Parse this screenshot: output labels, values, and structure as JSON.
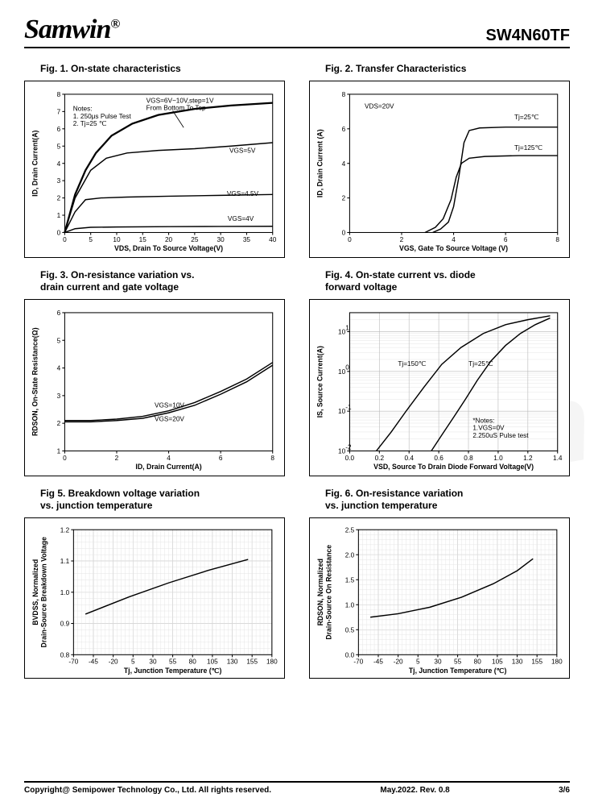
{
  "header": {
    "brand": "Samwin",
    "reg": "®",
    "partno": "SW4N60TF"
  },
  "footer": {
    "copyright": "Copyright@ Semipower Technology Co., Ltd. All rights reserved.",
    "rev": "May.2022. Rev. 0.8",
    "page": "3/6"
  },
  "charts": {
    "fig1": {
      "title": "Fig. 1. On-state characteristics",
      "xlabel": "VDS, Drain To Source Voltage(V)",
      "ylabel": "ID, Drain Current(A)",
      "xlim": [
        0,
        40
      ],
      "xtick_step": 5,
      "ylim": [
        0,
        8
      ],
      "ytick_step": 1,
      "notes": "Notes:\n 1. 250μs Pulse Test\n 2. Tj=25 ℃",
      "top_note": "VGS=6V~10V,step=1V\nFrom Bottom To Top",
      "series": [
        {
          "label": "VGS=4V",
          "pts": [
            [
              0,
              0
            ],
            [
              2,
              0.22
            ],
            [
              5,
              0.3
            ],
            [
              10,
              0.32
            ],
            [
              20,
              0.34
            ],
            [
              30,
              0.35
            ],
            [
              40,
              0.36
            ]
          ]
        },
        {
          "label": "VGS=4.5V",
          "pts": [
            [
              0,
              0
            ],
            [
              2,
              1.2
            ],
            [
              4,
              1.9
            ],
            [
              7,
              2.0
            ],
            [
              12,
              2.05
            ],
            [
              20,
              2.1
            ],
            [
              30,
              2.15
            ],
            [
              40,
              2.2
            ]
          ]
        },
        {
          "label": "VGS=5V",
          "pts": [
            [
              0,
              0
            ],
            [
              2,
              2.0
            ],
            [
              5,
              3.6
            ],
            [
              8,
              4.3
            ],
            [
              12,
              4.6
            ],
            [
              18,
              4.75
            ],
            [
              25,
              4.85
            ],
            [
              32,
              5.0
            ],
            [
              40,
              5.2
            ]
          ]
        },
        {
          "label": "top",
          "thick": true,
          "pts": [
            [
              0,
              0
            ],
            [
              2,
              2.2
            ],
            [
              4,
              3.6
            ],
            [
              6,
              4.6
            ],
            [
              9,
              5.6
            ],
            [
              13,
              6.3
            ],
            [
              18,
              6.8
            ],
            [
              25,
              7.15
            ],
            [
              32,
              7.35
            ],
            [
              40,
              7.5
            ]
          ]
        }
      ]
    },
    "fig2": {
      "title": "Fig. 2. Transfer Characteristics",
      "xlabel": "VGS,  Gate To Source Voltage (V)",
      "ylabel": "ID,  Drain Current (A)",
      "xlim": [
        0,
        8
      ],
      "xtick_step": 2,
      "ylim": [
        0,
        8
      ],
      "ytick_step": 2,
      "note": "VDS=20V",
      "series": [
        {
          "label": "Tj=25℃",
          "pts": [
            [
              3.2,
              0
            ],
            [
              3.5,
              0.2
            ],
            [
              3.8,
              0.6
            ],
            [
              4.0,
              1.5
            ],
            [
              4.2,
              3.2
            ],
            [
              4.4,
              5.2
            ],
            [
              4.6,
              5.9
            ],
            [
              5.0,
              6.05
            ],
            [
              6,
              6.1
            ],
            [
              8,
              6.1
            ]
          ]
        },
        {
          "label": "Tj=125℃",
          "pts": [
            [
              2.9,
              0
            ],
            [
              3.3,
              0.3
            ],
            [
              3.6,
              0.8
            ],
            [
              3.9,
              1.9
            ],
            [
              4.1,
              3.2
            ],
            [
              4.3,
              4.0
            ],
            [
              4.6,
              4.3
            ],
            [
              5.2,
              4.4
            ],
            [
              6.5,
              4.45
            ],
            [
              8,
              4.45
            ]
          ]
        }
      ]
    },
    "fig3": {
      "title": "Fig. 3. On-resistance variation vs.\n           drain current and gate voltage",
      "xlabel": "ID, Drain Current(A)",
      "ylabel": "RDSON, On-State Resistance(Ω)",
      "xlim": [
        0,
        8
      ],
      "xtick_step": 2,
      "ylim": [
        1.0,
        6.0
      ],
      "ytick_step": 1.0,
      "series": [
        {
          "label": "VGS=10V",
          "pts": [
            [
              0,
              2.1
            ],
            [
              1,
              2.1
            ],
            [
              2,
              2.15
            ],
            [
              3,
              2.25
            ],
            [
              4,
              2.45
            ],
            [
              5,
              2.75
            ],
            [
              6,
              3.15
            ],
            [
              7,
              3.6
            ],
            [
              8,
              4.2
            ]
          ]
        },
        {
          "label": "VGS=20V",
          "pts": [
            [
              0,
              2.05
            ],
            [
              1,
              2.05
            ],
            [
              2,
              2.1
            ],
            [
              3,
              2.18
            ],
            [
              4,
              2.38
            ],
            [
              5,
              2.65
            ],
            [
              6,
              3.05
            ],
            [
              7,
              3.5
            ],
            [
              8,
              4.1
            ]
          ]
        }
      ]
    },
    "fig4": {
      "title": "Fig. 4. On-state current vs. diode\n              forward voltage",
      "xlabel": "VSD, Source To Drain Diode Forward Voltage(V)",
      "ylabel": "IS, Source Current(A)",
      "xlim": [
        0,
        1.4
      ],
      "xtick_step": 0.2,
      "ylog": true,
      "ylim": [
        0.01,
        30
      ],
      "notes": "*Notes:\n1.VGS=0V\n2.250uS Pulse test",
      "series": [
        {
          "label": "Tj=150℃",
          "pts": [
            [
              0.18,
              0.01
            ],
            [
              0.28,
              0.03
            ],
            [
              0.38,
              0.1
            ],
            [
              0.5,
              0.4
            ],
            [
              0.62,
              1.5
            ],
            [
              0.75,
              4
            ],
            [
              0.9,
              9
            ],
            [
              1.05,
              15
            ],
            [
              1.2,
              20
            ],
            [
              1.35,
              25
            ]
          ]
        },
        {
          "label": "Tj=25℃",
          "pts": [
            [
              0.55,
              0.01
            ],
            [
              0.62,
              0.025
            ],
            [
              0.7,
              0.07
            ],
            [
              0.78,
              0.2
            ],
            [
              0.86,
              0.6
            ],
            [
              0.95,
              1.8
            ],
            [
              1.05,
              4.5
            ],
            [
              1.15,
              9
            ],
            [
              1.25,
              15
            ],
            [
              1.35,
              22
            ]
          ]
        }
      ]
    },
    "fig5": {
      "title": "Fig 5. Breakdown voltage variation\n          vs. junction temperature",
      "xlabel": "Tj, Junction Temperature  (℃)",
      "ylabel": "BVDSS, Normalized\nDrain-Source Breakdown Voltage",
      "xlim": [
        -70,
        180
      ],
      "xtick_step": 25,
      "ylim": [
        0.8,
        1.2
      ],
      "ytick_step": 0.1,
      "grid": true,
      "series": [
        {
          "pts": [
            [
              -55,
              0.93
            ],
            [
              0,
              0.985
            ],
            [
              50,
              1.03
            ],
            [
              100,
              1.07
            ],
            [
              150,
              1.105
            ]
          ]
        }
      ]
    },
    "fig6": {
      "title": "Fig. 6. On-resistance variation\n         vs. junction temperature",
      "xlabel": "Tj, Junction Temperature  (℃)",
      "ylabel": "RDSON, Normalized\nDrain-Source On Resistance",
      "xlim": [
        -70,
        180
      ],
      "xtick_step": 25,
      "ylim": [
        0.0,
        2.5
      ],
      "ytick_step": 0.5,
      "grid": true,
      "series": [
        {
          "pts": [
            [
              -55,
              0.75
            ],
            [
              -20,
              0.82
            ],
            [
              20,
              0.95
            ],
            [
              60,
              1.15
            ],
            [
              100,
              1.42
            ],
            [
              130,
              1.68
            ],
            [
              150,
              1.92
            ]
          ]
        }
      ]
    }
  }
}
